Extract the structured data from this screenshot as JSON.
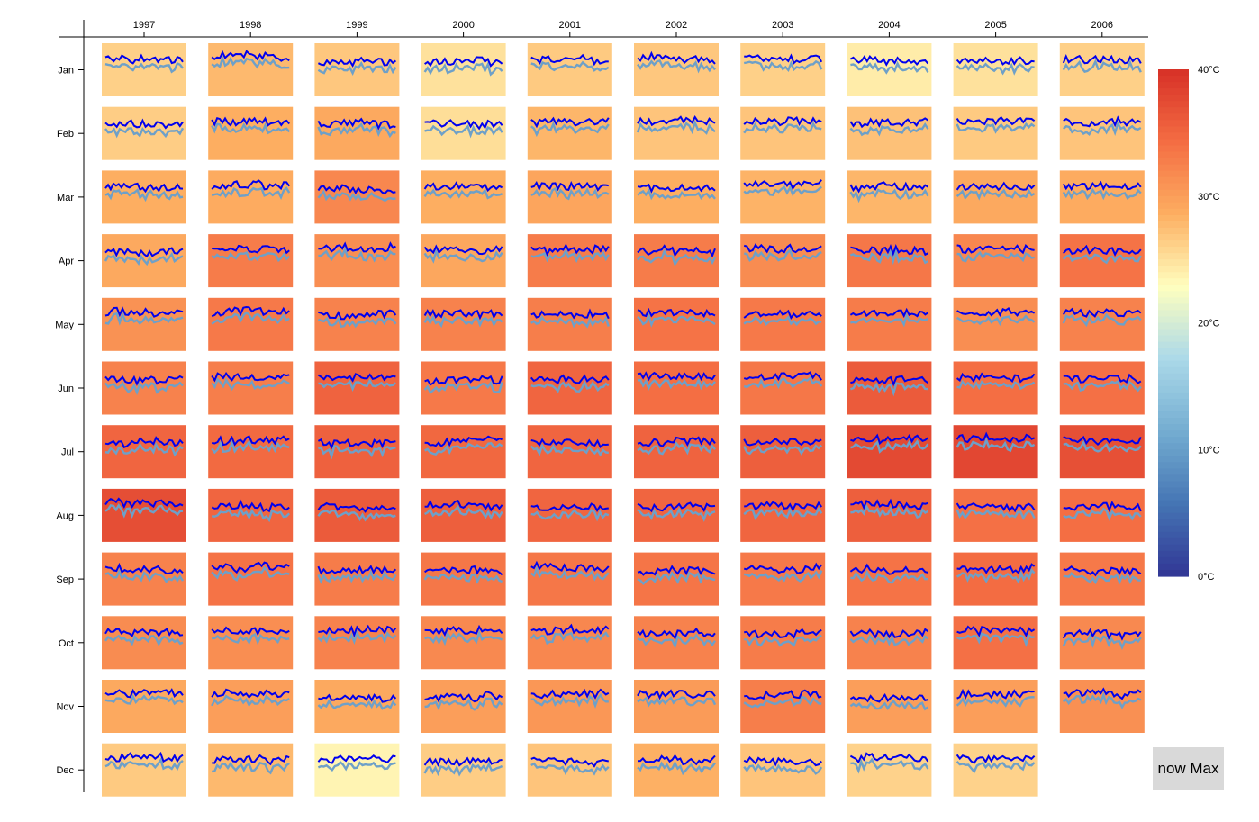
{
  "toggle_button": {
    "label": "now Max"
  },
  "chart_data": {
    "type": "heatmap",
    "description_kind": "monthly temperature heatmap with daily max/min sparklines",
    "x_tick_labels": [
      "1997",
      "1998",
      "1999",
      "2000",
      "2001",
      "2002",
      "2003",
      "2004",
      "2005",
      "2006"
    ],
    "y_tick_labels": [
      "Jan",
      "Feb",
      "Mar",
      "Apr",
      "May",
      "Jun",
      "Jul",
      "Aug",
      "Sep",
      "Oct",
      "Nov",
      "Dec"
    ],
    "legend": {
      "tick_labels": [
        "40°C",
        "30°C",
        "20°C",
        "10°C",
        "0°C"
      ],
      "domain": [
        0,
        40
      ],
      "placement": "right"
    },
    "color_scale": [
      "#313695",
      "#4575b4",
      "#74add1",
      "#abd9e9",
      "#ffffbf",
      "#fdae61",
      "#f46d43",
      "#d73027"
    ],
    "series_colors": {
      "max": "#0000ee",
      "min": "#6ea0c8"
    },
    "cell_values": [
      [
        26.2,
        27.8,
        26.8,
        25.0,
        26.6,
        26.8,
        26.2,
        24.2,
        25.0,
        26.2
      ],
      [
        26.4,
        28.6,
        29.0,
        25.2,
        28.0,
        27.0,
        27.0,
        27.2,
        26.6,
        27.0
      ],
      [
        28.6,
        28.8,
        32.0,
        28.6,
        29.4,
        28.6,
        28.2,
        28.0,
        29.0,
        28.8
      ],
      [
        29.0,
        33.0,
        31.4,
        29.2,
        33.0,
        33.0,
        31.6,
        33.4,
        32.0,
        33.8
      ],
      [
        31.0,
        33.2,
        32.4,
        32.4,
        32.8,
        33.8,
        33.2,
        33.0,
        31.4,
        32.4
      ],
      [
        32.4,
        32.8,
        35.2,
        33.2,
        35.0,
        34.2,
        33.4,
        36.0,
        34.2,
        34.0
      ],
      [
        35.0,
        34.6,
        35.4,
        34.8,
        35.0,
        35.2,
        35.6,
        37.6,
        37.8,
        37.0
      ],
      [
        37.2,
        35.0,
        36.0,
        35.6,
        35.0,
        35.0,
        35.0,
        35.6,
        34.0,
        34.2
      ],
      [
        32.4,
        33.8,
        33.0,
        33.4,
        33.4,
        33.6,
        33.2,
        33.8,
        34.4,
        33.2
      ],
      [
        31.6,
        31.4,
        32.4,
        31.8,
        32.0,
        32.4,
        33.0,
        32.4,
        34.0,
        31.8
      ],
      [
        29.0,
        30.0,
        29.0,
        30.0,
        30.6,
        30.2,
        32.8,
        30.0,
        30.0,
        31.2
      ],
      [
        26.6,
        27.8,
        23.6,
        26.4,
        27.0,
        28.4,
        27.0,
        26.0,
        26.0,
        null
      ]
    ],
    "sparkline_shape": {
      "pattern_note": "each cell shows two daily series (max above, min below)",
      "max_offset_from_cell": 3.6,
      "min_offset_from_cell": 0.4
    },
    "grid": false
  }
}
